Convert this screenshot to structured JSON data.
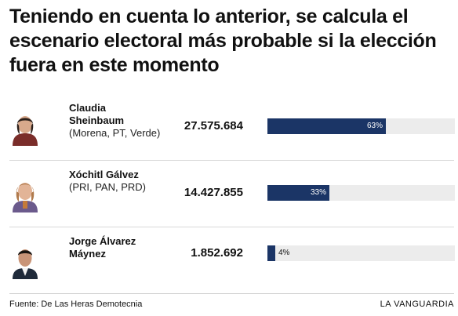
{
  "title": "Teniendo en cuenta lo anterior, se calcula el escenario electoral más probable si la elección fuera en este momento",
  "chart_data": {
    "type": "bar",
    "title": "Teniendo en cuenta lo anterior, se calcula el escenario electoral más probable si la elección fuera en este momento",
    "categories": [
      "Claudia Sheinbaum",
      "Xóchitl Gálvez",
      "Jorge Álvarez Máynez"
    ],
    "series": [
      {
        "values": [
          63,
          33,
          4
        ]
      }
    ],
    "ylim": [
      0,
      100
    ],
    "bar_color": "#1b3566",
    "track_color": "#ececec"
  },
  "rows": [
    {
      "name": "Claudia Sheinbaum",
      "party": "(Morena, PT, Verde)",
      "votes": "27.575.684",
      "pct": 63,
      "pct_label": "63%",
      "avatar": "portrait-icon"
    },
    {
      "name": "Xóchitl Gálvez",
      "party": "(PRI, PAN, PRD)",
      "votes": "14.427.855",
      "pct": 33,
      "pct_label": "33%",
      "avatar": "portrait-icon"
    },
    {
      "name": "Jorge Álvarez Máynez",
      "party": "",
      "votes": "1.852.692",
      "pct": 4,
      "pct_label": "4%",
      "avatar": "portrait-icon"
    }
  ],
  "footer": {
    "source": "Fuente: De Las Heras Demotecnia",
    "brand": "LA VANGUARDIA"
  }
}
